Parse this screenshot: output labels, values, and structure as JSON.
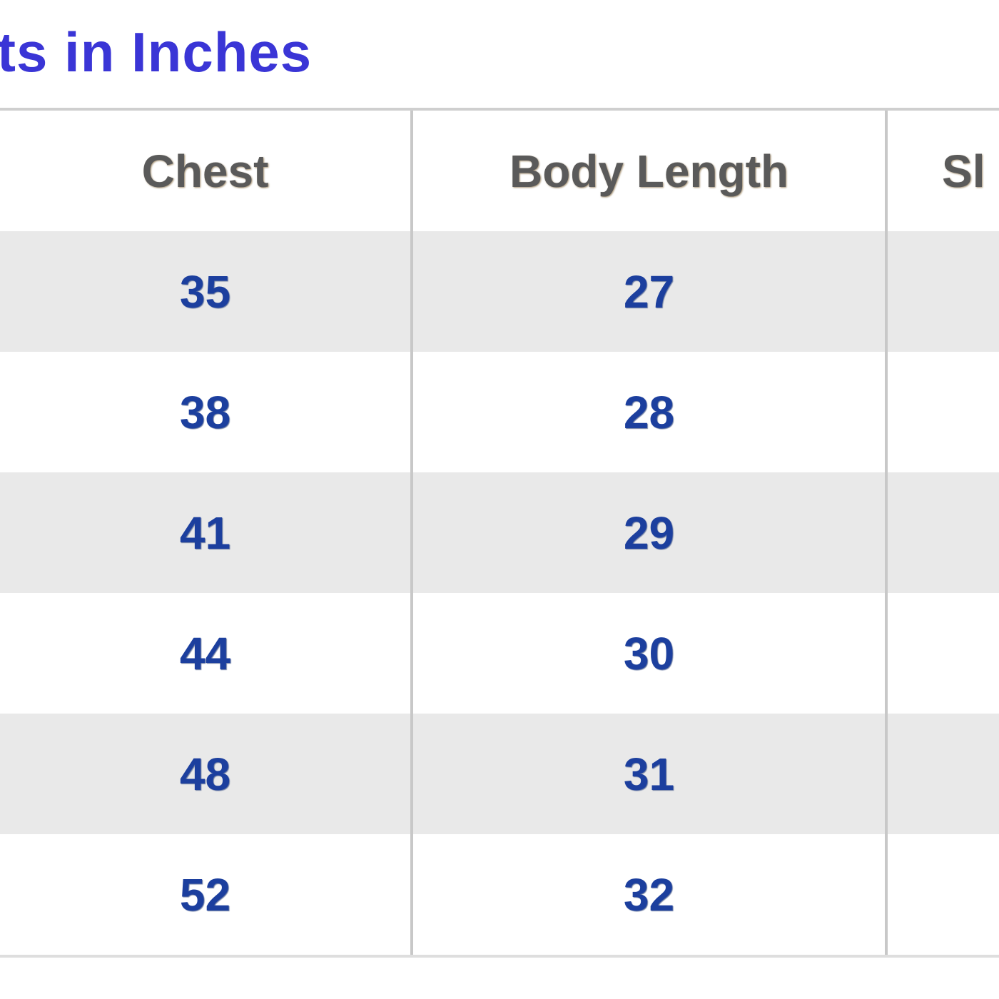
{
  "title": "ts in Inches",
  "colors": {
    "title": "#3a35d6",
    "header_text": "#5a5a5a",
    "value_text": "#1c3f9e",
    "alt_row": "#e9e9e9"
  },
  "table": {
    "headers": [
      "Chest",
      "Body Length",
      "Sl"
    ],
    "rows": [
      [
        "35",
        "27",
        ""
      ],
      [
        "38",
        "28",
        ""
      ],
      [
        "41",
        "29",
        ""
      ],
      [
        "44",
        "30",
        ""
      ],
      [
        "48",
        "31",
        ""
      ],
      [
        "52",
        "32",
        ""
      ]
    ]
  }
}
